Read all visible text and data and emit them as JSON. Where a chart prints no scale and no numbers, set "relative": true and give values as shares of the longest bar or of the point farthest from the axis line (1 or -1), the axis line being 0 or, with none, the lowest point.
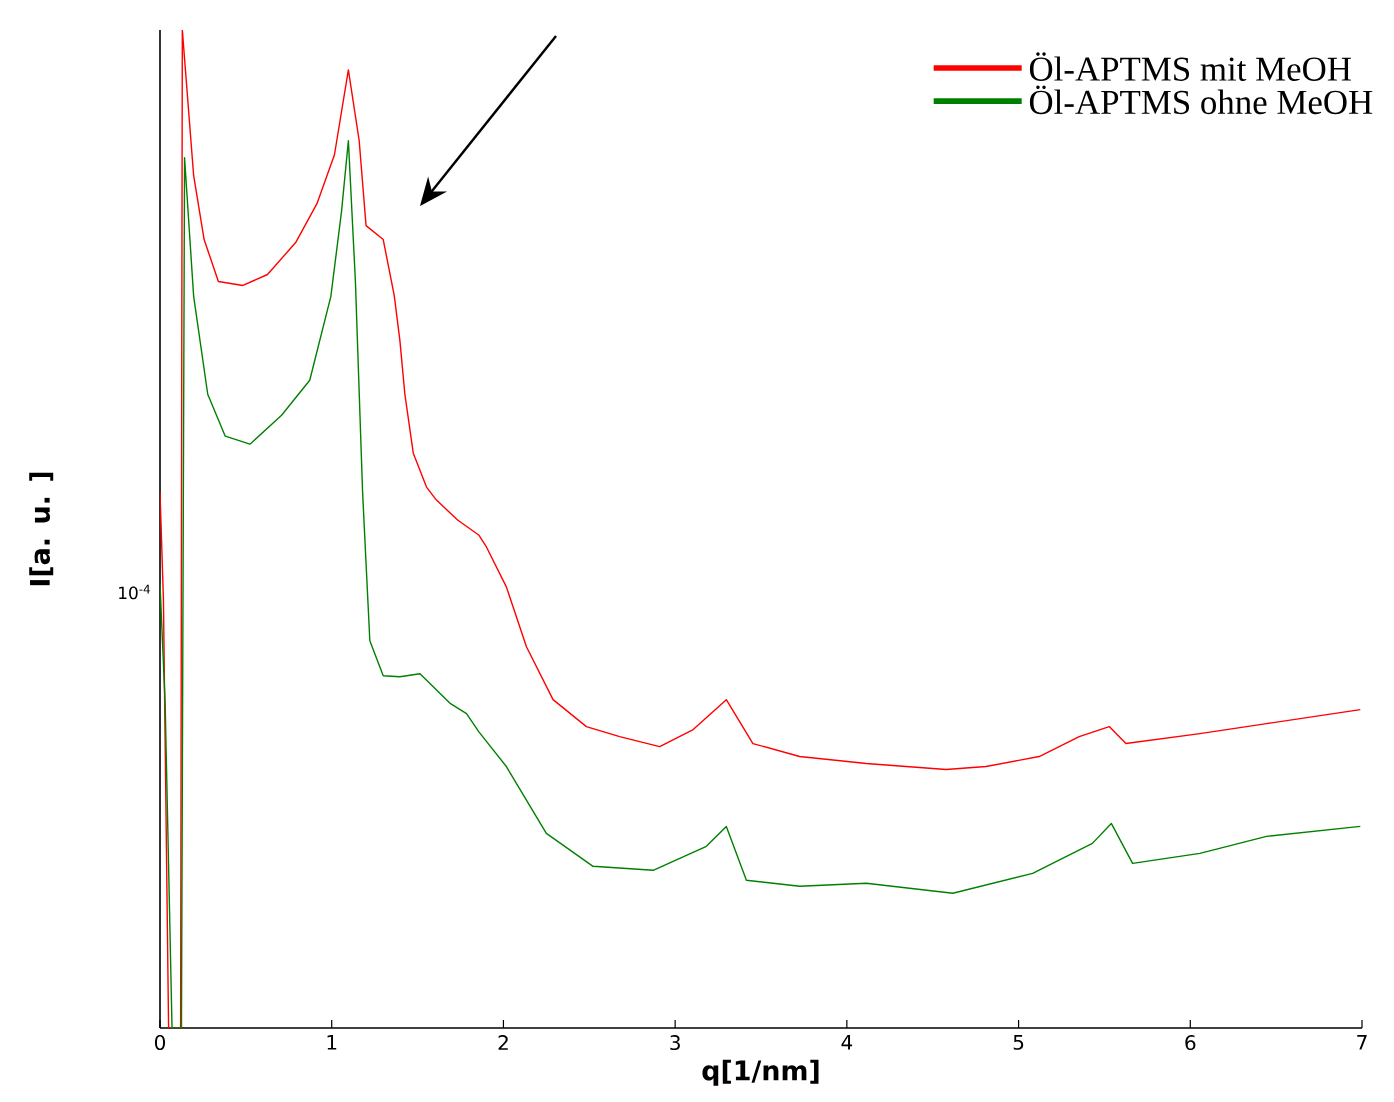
{
  "chart_data": {
    "type": "line",
    "xlabel": "q[1/nm]",
    "ylabel": "I[a. u. ]",
    "relative": true,
    "annotations": [
      "10$^{-4}$"
    ],
    "legend": "top right",
    "marker": "none",
    "line_style": "solid",
    "xlim": [
      0,
      7
    ],
    "xticks": [
      0,
      1,
      2,
      3,
      4,
      5,
      6,
      7
    ],
    "series": [
      {
        "name": "Öl-APTMS mit MeOH",
        "color": "#ff0000",
        "x": [
          0,
          0.02,
          0.05,
          0.12,
          0.13,
          0.196,
          0.257,
          0.34,
          0.483,
          0.626,
          0.79,
          0.914,
          1.016,
          1.097,
          1.16,
          1.2,
          1.3,
          1.364,
          1.397,
          1.426,
          1.475,
          1.552,
          1.61,
          1.733,
          1.856,
          1.901,
          2.017,
          2.134,
          2.289,
          2.483,
          2.677,
          2.91,
          3.105,
          3.298,
          3.453,
          3.725,
          4.113,
          4.578,
          4.81,
          5.12,
          5.353,
          5.528,
          5.625,
          6.056,
          6.444,
          6.99
        ],
        "values": [
          0.537,
          0.429,
          0,
          0,
          1,
          0.854,
          0.79,
          0.748,
          0.744,
          0.755,
          0.787,
          0.826,
          0.875,
          0.96,
          0.889,
          0.804,
          0.79,
          0.734,
          0.689,
          0.635,
          0.576,
          0.542,
          0.529,
          0.509,
          0.494,
          0.482,
          0.442,
          0.382,
          0.329,
          0.302,
          0.292,
          0.282,
          0.299,
          0.329,
          0.285,
          0.272,
          0.265,
          0.259,
          0.262,
          0.272,
          0.292,
          0.302,
          0.285,
          0.295,
          0.305,
          0.319
        ]
      },
      {
        "name": "Öl-APTMS ohne MeOH",
        "color": "#008000",
        "x": [
          0,
          0.03,
          0.07,
          0.125,
          0.143,
          0.196,
          0.278,
          0.38,
          0.524,
          0.708,
          0.872,
          0.995,
          1.057,
          1.097,
          1.138,
          1.18,
          1.222,
          1.3,
          1.397,
          1.514,
          1.692,
          1.785,
          1.856,
          2.017,
          2.25,
          2.522,
          2.872,
          3.182,
          3.298,
          3.415,
          3.725,
          4.113,
          4.617,
          5.082,
          5.43,
          5.54,
          5.664,
          6.056,
          6.444,
          6.99
        ],
        "values": [
          0.445,
          0.325,
          0,
          0,
          0.872,
          0.733,
          0.635,
          0.593,
          0.585,
          0.614,
          0.649,
          0.733,
          0.818,
          0.889,
          0.748,
          0.536,
          0.388,
          0.353,
          0.352,
          0.355,
          0.325,
          0.315,
          0.297,
          0.262,
          0.195,
          0.162,
          0.158,
          0.182,
          0.202,
          0.148,
          0.142,
          0.145,
          0.135,
          0.155,
          0.185,
          0.205,
          0.165,
          0.175,
          0.192,
          0.202
        ]
      }
    ]
  }
}
